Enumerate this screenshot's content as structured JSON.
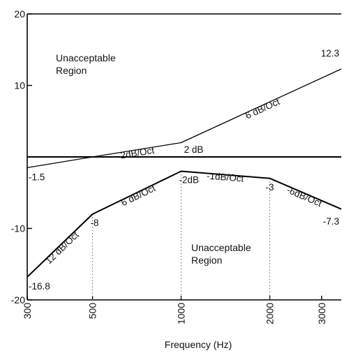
{
  "chart_data": {
    "type": "line",
    "title": "",
    "xlabel": "Frequency (Hz)",
    "ylabel": "",
    "x_scale": "log",
    "xlim": [
      300,
      3500
    ],
    "ylim": [
      -20,
      20
    ],
    "x_ticks": [
      {
        "value": 300,
        "label": "300"
      },
      {
        "value": 500,
        "label": "500"
      },
      {
        "value": 1000,
        "label": "1000"
      },
      {
        "value": 2000,
        "label": "2000"
      },
      {
        "value": 3000,
        "label": "3000"
      }
    ],
    "y_ticks": [
      {
        "value": 20,
        "label": "20"
      },
      {
        "value": 10,
        "label": "10"
      },
      {
        "value": -10,
        "label": "-10"
      },
      {
        "value": -20,
        "label": "-20"
      }
    ],
    "grid": false,
    "series": [
      {
        "x": [
          300,
          500,
          1000,
          3500
        ],
        "y": [
          -1.5,
          0,
          2,
          12.3
        ]
      },
      {
        "x": [
          300,
          500,
          1000,
          2000,
          3500
        ],
        "y": [
          -16.8,
          -8,
          -2,
          -3,
          -7.3
        ]
      }
    ],
    "reference_line": {
      "y": 0,
      "label": "2 dB"
    },
    "dotted_guides": [
      500,
      1000,
      2000
    ],
    "point_labels": [
      {
        "x": 300,
        "y": -1.5,
        "text": "-1.5"
      },
      {
        "x": 3500,
        "y": 12.3,
        "text": "12.3"
      },
      {
        "x": 300,
        "y": -16.8,
        "text": "-16.8"
      },
      {
        "x": 500,
        "y": -8,
        "text": "-8"
      },
      {
        "x": 1000,
        "y": -2,
        "text": "-2dB"
      },
      {
        "x": 2000,
        "y": -3,
        "text": "-3"
      },
      {
        "x": 3500,
        "y": -7.3,
        "text": "-7.3"
      }
    ],
    "slope_labels": [
      {
        "x1": 500,
        "y1": 0,
        "x2": 1000,
        "y2": 2,
        "text": "2dB/Oct"
      },
      {
        "x1": 1000,
        "y1": 2,
        "x2": 3500,
        "y2": 12.3,
        "text": "6 dB/Oct"
      },
      {
        "x1": 300,
        "y1": -16.8,
        "x2": 500,
        "y2": -8,
        "text": "12 dB/Oct"
      },
      {
        "x1": 500,
        "y1": -8,
        "x2": 1000,
        "y2": -2,
        "text": "6 dB/Oct"
      },
      {
        "x1": 1000,
        "y1": -2,
        "x2": 2000,
        "y2": -3,
        "text": "-1dB/Oct"
      },
      {
        "x1": 2000,
        "y1": -3,
        "x2": 3500,
        "y2": -7.3,
        "text": "-6dB/Oct"
      }
    ],
    "region_labels": [
      {
        "lines": [
          "Unacceptable",
          "Region"
        ],
        "position": "upper-left"
      },
      {
        "lines": [
          "Unacceptable",
          "Region"
        ],
        "position": "lower-center"
      }
    ]
  }
}
